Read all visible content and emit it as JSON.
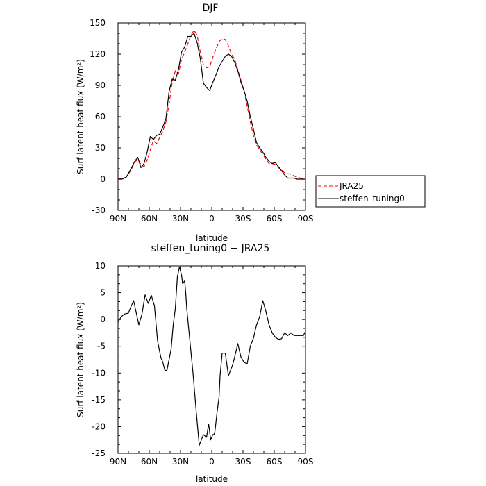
{
  "chart_data": [
    {
      "type": "line",
      "title": "DJF",
      "xlabel": "latitude",
      "ylabel": "Surf latent heat flux (W/m²)",
      "xlim": [
        -90,
        90
      ],
      "ylim": [
        -30,
        150
      ],
      "x_ticks": [
        {
          "value": -90,
          "label": "90N"
        },
        {
          "value": -60,
          "label": "60N"
        },
        {
          "value": -30,
          "label": "30N"
        },
        {
          "value": 0,
          "label": "0"
        },
        {
          "value": 30,
          "label": "30S"
        },
        {
          "value": 60,
          "label": "60S"
        },
        {
          "value": 90,
          "label": "90S"
        }
      ],
      "y_ticks": [
        -30,
        0,
        30,
        60,
        90,
        120,
        150
      ],
      "grid": false,
      "legend": "outside-right",
      "series": [
        {
          "name": "JRA25",
          "color": "#ff0000",
          "dash": "dashed",
          "x": [
            -90,
            -86,
            -82,
            -78,
            -74,
            -71,
            -68,
            -65,
            -62,
            -59,
            -56,
            -53,
            -50,
            -47,
            -44,
            -41,
            -38,
            -35,
            -32,
            -29,
            -26,
            -23,
            -20,
            -17,
            -14,
            -11,
            -8,
            -5,
            -2,
            1,
            4,
            7,
            10,
            13,
            16,
            19,
            22,
            25,
            28,
            31,
            34,
            37,
            40,
            43,
            46,
            49,
            52,
            55,
            58,
            61,
            64,
            67,
            70,
            73,
            76,
            79,
            82,
            85,
            88,
            90
          ],
          "y": [
            0,
            0.5,
            2,
            8,
            16,
            19,
            14,
            12,
            18,
            28,
            37,
            34,
            40,
            46,
            55,
            72,
            93,
            104,
            101,
            115,
            122,
            130,
            138,
            143,
            138,
            122,
            110,
            107,
            108,
            117,
            125,
            132,
            135,
            134,
            128,
            120,
            115,
            105,
            95,
            85,
            70,
            55,
            42,
            33,
            28,
            24,
            19,
            15,
            15,
            14,
            11,
            9,
            6,
            5,
            5,
            3,
            2,
            1,
            0,
            0
          ]
        },
        {
          "name": "steffen_tuning0",
          "color": "#000000",
          "dash": "solid",
          "x": [
            -90,
            -86,
            -82,
            -78,
            -74,
            -71,
            -68,
            -65,
            -62,
            -59,
            -56,
            -53,
            -50,
            -47,
            -44,
            -41,
            -38,
            -35,
            -32,
            -29,
            -26,
            -23,
            -20,
            -17,
            -14,
            -11,
            -8,
            -5,
            -2,
            1,
            4,
            7,
            10,
            13,
            16,
            19,
            22,
            25,
            28,
            31,
            34,
            37,
            40,
            43,
            46,
            49,
            52,
            55,
            58,
            61,
            64,
            67,
            70,
            73,
            76,
            79,
            82,
            85,
            88,
            90
          ],
          "y": [
            0,
            0,
            2,
            9,
            17,
            21,
            11,
            15,
            26,
            41,
            38,
            42,
            43,
            50,
            58,
            84,
            96,
            95,
            105,
            122,
            127,
            137,
            137,
            140,
            131,
            116,
            92,
            88,
            85,
            93,
            100,
            108,
            113,
            118,
            120,
            118,
            112,
            104,
            93,
            85,
            75,
            60,
            48,
            35,
            30,
            26,
            21,
            17,
            15,
            16,
            12,
            8,
            4,
            1,
            1,
            1,
            0,
            0,
            0,
            0
          ]
        }
      ]
    },
    {
      "type": "line",
      "title": "steffen_tuning0 − JRA25",
      "xlabel": "latitude",
      "ylabel": "Surf latent heat flux (W/m²)",
      "xlim": [
        -90,
        90
      ],
      "ylim": [
        -25,
        10
      ],
      "x_ticks": [
        {
          "value": -90,
          "label": "90N"
        },
        {
          "value": -60,
          "label": "60N"
        },
        {
          "value": -30,
          "label": "30N"
        },
        {
          "value": 0,
          "label": "0"
        },
        {
          "value": 30,
          "label": "30S"
        },
        {
          "value": 60,
          "label": "60S"
        },
        {
          "value": 90,
          "label": "90S"
        }
      ],
      "y_ticks": [
        -25,
        -20,
        -15,
        -10,
        -5,
        0,
        5,
        10
      ],
      "grid": false,
      "series": [
        {
          "color": "#000000",
          "dash": "solid",
          "x": [
            -90,
            -87,
            -84,
            -80,
            -78,
            -75,
            -70,
            -67,
            -64,
            -61,
            -58,
            -55,
            -52,
            -49,
            -47,
            -45,
            -43,
            -39,
            -37,
            -35,
            -33,
            -31,
            -29,
            -28,
            -26,
            -25,
            -24,
            -23,
            -21,
            -18,
            -15,
            -12,
            -8,
            -5,
            -3,
            -1,
            1,
            2,
            3,
            5,
            7,
            8,
            10,
            13,
            16,
            20,
            22,
            25,
            28,
            31,
            34,
            37,
            40,
            43,
            46,
            49,
            52,
            55,
            58,
            61,
            64,
            67,
            70,
            73,
            76,
            79,
            82,
            85,
            88,
            90
          ],
          "y": [
            -0.5,
            0.5,
            1,
            1.2,
            2.2,
            3.5,
            -1,
            1,
            4.6,
            3,
            4.5,
            2.5,
            -4,
            -7,
            -8,
            -9.5,
            -9.5,
            -5.5,
            -1,
            2,
            8,
            9.8,
            8.3,
            6.7,
            7.2,
            5,
            2,
            0,
            -4,
            -10,
            -17,
            -23.5,
            -21.5,
            -22,
            -19.5,
            -22.5,
            -21.5,
            -21.5,
            -21,
            -17.5,
            -14.5,
            -10.5,
            -6.3,
            -6.3,
            -10.5,
            -8.5,
            -7,
            -4.5,
            -7,
            -8,
            -8.3,
            -5,
            -3.5,
            -1,
            0.5,
            3.5,
            1.5,
            -1,
            -2.5,
            -3.3,
            -3.7,
            -3.6,
            -2.5,
            -3,
            -2.5,
            -3,
            -3,
            -3,
            -3,
            -2.2
          ]
        }
      ]
    }
  ]
}
